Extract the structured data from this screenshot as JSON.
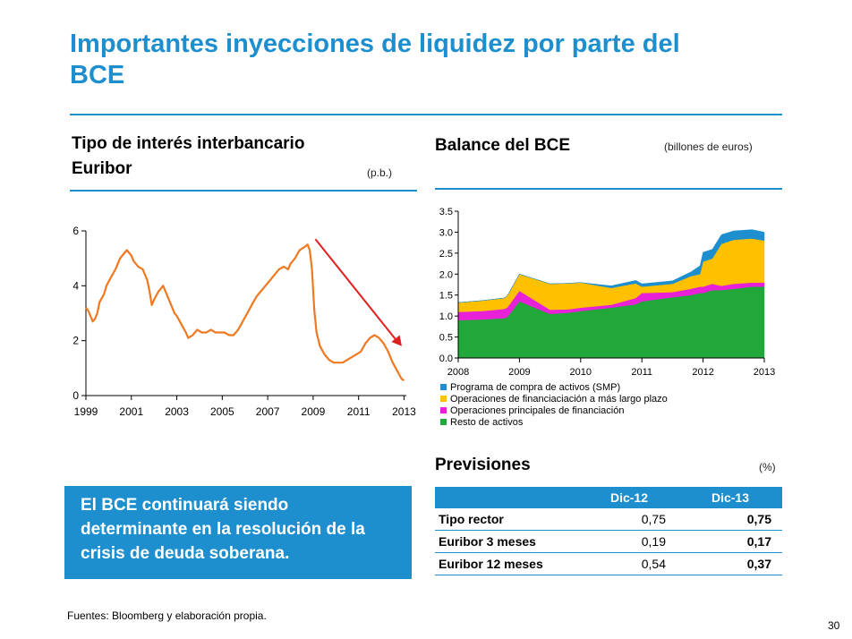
{
  "title": "Importantes inyecciones de liquidez por parte del BCE",
  "left_panel": {
    "title_line1": "Tipo de interés interbancario",
    "title_line2": "Euribor",
    "unit": "(p.b.)"
  },
  "right_panel": {
    "title": "Balance del BCE",
    "unit": "(billones de euros)"
  },
  "forecast": {
    "title": "Previsiones",
    "unit": "(%)",
    "columns": [
      "",
      "Dic-12",
      "Dic-13"
    ],
    "rows": [
      {
        "label": "Tipo rector",
        "dic12": "0,75",
        "dic13": "0,75"
      },
      {
        "label": "Euribor 3 meses",
        "dic12": "0,19",
        "dic13": "0,17"
      },
      {
        "label": "Euribor 12 meses",
        "dic12": "0,54",
        "dic13": "0,37"
      }
    ]
  },
  "callout": "El BCE continuará siendo determinante en la resolución de la crisis de deuda soberana.",
  "source": "Fuentes: Bloomberg y elaboración propia.",
  "page_number": "30",
  "chart_data": [
    {
      "type": "line",
      "title": "Tipo de interés interbancario Euribor",
      "ylabel": "(p.b.)",
      "x_ticks": [
        "1999",
        "2001",
        "2003",
        "2005",
        "2007",
        "2009",
        "2011",
        "2013"
      ],
      "y_ticks": [
        "0",
        "2",
        "4",
        "6"
      ],
      "xlim": [
        1999,
        2013.1
      ],
      "ylim": [
        0,
        6
      ],
      "colors": {
        "line": "#f07820",
        "trend_arrow": "#e02020"
      },
      "series": [
        {
          "x": [
            1999.0,
            1999.1,
            1999.2,
            1999.3,
            1999.4,
            1999.5,
            1999.6,
            1999.8,
            1999.9,
            2000.1,
            2000.3,
            2000.5,
            2000.7,
            2000.8,
            2000.9,
            2001.0,
            2001.1,
            2001.3,
            2001.5,
            2001.7,
            2001.8,
            2001.9,
            2002.0,
            2002.2,
            2002.4,
            2002.6,
            2002.8,
            2002.9,
            2003.0,
            2003.2,
            2003.4,
            2003.5,
            2003.7,
            2003.9,
            2004.1,
            2004.3,
            2004.5,
            2004.7,
            2004.9,
            2005.1,
            2005.3,
            2005.5,
            2005.7,
            2005.9,
            2006.1,
            2006.3,
            2006.5,
            2006.7,
            2006.9,
            2007.1,
            2007.3,
            2007.5,
            2007.7,
            2007.9,
            2008.0,
            2008.2,
            2008.4,
            2008.6,
            2008.75,
            2008.85,
            2008.95,
            2009.05,
            2009.15,
            2009.3,
            2009.5,
            2009.7,
            2009.9,
            2010.1,
            2010.3,
            2010.5,
            2010.7,
            2010.9,
            2011.1,
            2011.3,
            2011.5,
            2011.7,
            2011.9,
            2012.1,
            2012.3,
            2012.5,
            2012.7,
            2012.9,
            2013.0
          ],
          "y": [
            3.2,
            3.1,
            2.9,
            2.7,
            2.8,
            3.0,
            3.4,
            3.7,
            4.0,
            4.3,
            4.6,
            5.0,
            5.2,
            5.3,
            5.2,
            5.1,
            4.9,
            4.7,
            4.6,
            4.2,
            3.8,
            3.3,
            3.5,
            3.8,
            4.0,
            3.6,
            3.2,
            3.0,
            2.9,
            2.6,
            2.3,
            2.1,
            2.2,
            2.4,
            2.3,
            2.3,
            2.4,
            2.3,
            2.3,
            2.3,
            2.2,
            2.2,
            2.4,
            2.7,
            3.0,
            3.3,
            3.6,
            3.8,
            4.0,
            4.2,
            4.4,
            4.6,
            4.7,
            4.6,
            4.8,
            5.0,
            5.3,
            5.4,
            5.5,
            5.3,
            4.6,
            3.1,
            2.3,
            1.8,
            1.5,
            1.3,
            1.2,
            1.2,
            1.2,
            1.3,
            1.4,
            1.5,
            1.6,
            1.9,
            2.1,
            2.2,
            2.1,
            1.9,
            1.6,
            1.2,
            0.9,
            0.6,
            0.55
          ]
        }
      ]
    },
    {
      "type": "area",
      "title": "Balance del BCE",
      "ylabel": "(billones de euros)",
      "x_ticks": [
        "2008",
        "2009",
        "2010",
        "2011",
        "2012",
        "2013"
      ],
      "y_ticks": [
        "0.0",
        "0.5",
        "1.0",
        "1.5",
        "2.0",
        "2.5",
        "3.0",
        "3.5"
      ],
      "xlim": [
        2008,
        2013
      ],
      "ylim": [
        0,
        3.5
      ],
      "stacked": true,
      "legend_position": "bottom",
      "x": [
        2008.0,
        2008.4,
        2008.75,
        2008.8,
        2009.0,
        2009.5,
        2009.8,
        2010.0,
        2010.5,
        2010.9,
        2011.0,
        2011.5,
        2011.8,
        2011.95,
        2012.0,
        2012.15,
        2012.3,
        2012.5,
        2012.8,
        2013.0
      ],
      "series": [
        {
          "name": "Resto de activos",
          "color": "#22a83a",
          "values": [
            0.9,
            0.92,
            0.95,
            0.97,
            1.35,
            1.05,
            1.08,
            1.12,
            1.2,
            1.28,
            1.35,
            1.45,
            1.5,
            1.55,
            1.55,
            1.62,
            1.62,
            1.65,
            1.7,
            1.7
          ]
        },
        {
          "name": "Operaciones principales de financiación",
          "color": "#e820d8",
          "values": [
            0.2,
            0.2,
            0.22,
            0.23,
            0.25,
            0.1,
            0.08,
            0.08,
            0.07,
            0.15,
            0.2,
            0.12,
            0.15,
            0.15,
            0.15,
            0.15,
            0.1,
            0.12,
            0.1,
            0.1
          ]
        },
        {
          "name": "Operaciones de financiaciación a más largo plazo",
          "color": "#ffc000",
          "values": [
            0.22,
            0.25,
            0.26,
            0.28,
            0.4,
            0.62,
            0.62,
            0.6,
            0.4,
            0.35,
            0.15,
            0.2,
            0.3,
            0.3,
            0.6,
            0.6,
            1.0,
            1.05,
            1.05,
            1.0
          ]
        },
        {
          "name": "Programa de compra de activos (SMP)",
          "color": "#1e8fce",
          "values": [
            0,
            0,
            0,
            0,
            0,
            0,
            0,
            0,
            0.05,
            0.07,
            0.07,
            0.07,
            0.1,
            0.2,
            0.22,
            0.22,
            0.22,
            0.21,
            0.21,
            0.2
          ]
        }
      ]
    }
  ]
}
